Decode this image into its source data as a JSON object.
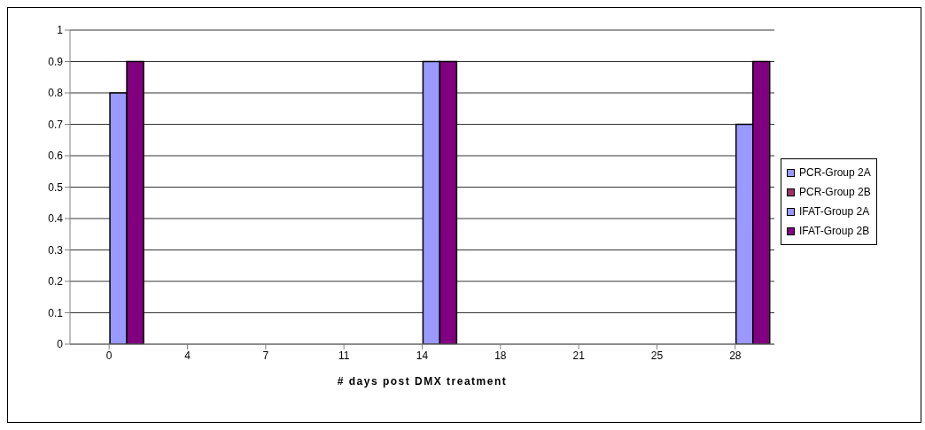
{
  "chart_data": {
    "type": "bar",
    "xlabel": "# days post DMX treatment",
    "categories": [
      "0",
      "4",
      "7",
      "11",
      "14",
      "18",
      "21",
      "25",
      "28"
    ],
    "series": [
      {
        "name": "PCR-Group 2A",
        "color": "#9999ff",
        "values": [
          null,
          null,
          null,
          null,
          null,
          null,
          null,
          null,
          null
        ]
      },
      {
        "name": "PCR-Group 2B",
        "color": "#993366",
        "values": [
          null,
          null,
          null,
          null,
          null,
          null,
          null,
          null,
          null
        ]
      },
      {
        "name": "IFAT-Group 2A",
        "color": "#9999ff",
        "values": [
          0.8,
          null,
          null,
          null,
          0.9,
          null,
          null,
          null,
          0.7
        ]
      },
      {
        "name": "IFAT-Group 2B",
        "color": "#800080",
        "values": [
          0.9,
          null,
          null,
          null,
          0.9,
          null,
          null,
          null,
          0.9
        ]
      }
    ],
    "ylim": [
      0,
      1
    ],
    "yticks": [
      0,
      0.1,
      0.2,
      0.3,
      0.4,
      0.5,
      0.6,
      0.7,
      0.8,
      0.9,
      1
    ],
    "grid": "y",
    "legend": "right"
  }
}
